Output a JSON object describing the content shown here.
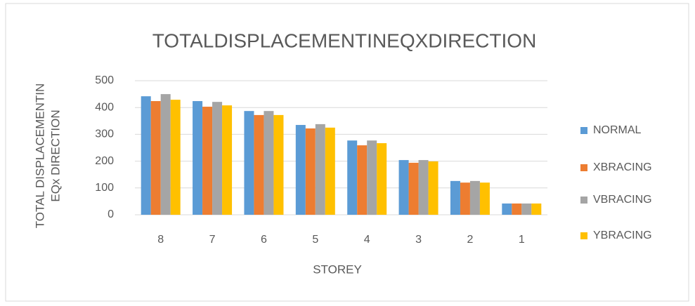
{
  "chart_data": {
    "type": "bar",
    "title": "TOTALDISPLACEMENTINEQXDIRECTION",
    "xlabel": "STOREY",
    "ylabel": [
      "TOTAL DISPLACEMENTIN",
      "EQx DIRECTION"
    ],
    "categories": [
      "8",
      "7",
      "6",
      "5",
      "4",
      "3",
      "2",
      "1"
    ],
    "series": [
      {
        "name": "NORMAL",
        "color": "#5b9bd5",
        "values": [
          442,
          424,
          387,
          335,
          277,
          204,
          126,
          42
        ]
      },
      {
        "name": "XBRACING",
        "color": "#ed7d31",
        "values": [
          424,
          403,
          372,
          322,
          259,
          194,
          120,
          42
        ]
      },
      {
        "name": "VBRACING",
        "color": "#a5a5a5",
        "values": [
          450,
          421,
          387,
          338,
          277,
          204,
          126,
          42
        ]
      },
      {
        "name": "YBRACING",
        "color": "#ffc000",
        "values": [
          429,
          408,
          372,
          325,
          267,
          199,
          120,
          42
        ]
      }
    ],
    "ylim": [
      0,
      500
    ],
    "yticks": [
      0,
      100,
      200,
      300,
      400,
      500
    ],
    "grid": true,
    "legend": "right"
  }
}
